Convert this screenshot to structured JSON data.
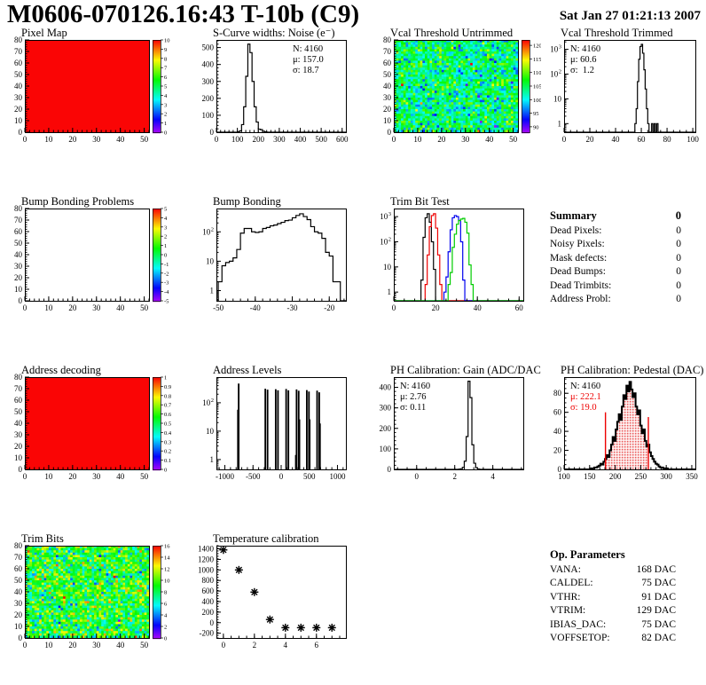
{
  "header": {
    "title": "M0606-070126.16:43 T-10b (C9)",
    "date": "Sat Jan 27 01:21:13 2007"
  },
  "summary": {
    "title": "Summary",
    "value": "0",
    "rows": [
      {
        "label": "Dead Pixels:",
        "value": "0"
      },
      {
        "label": "Noisy Pixels:",
        "value": "0"
      },
      {
        "label": "Mask defects:",
        "value": "0"
      },
      {
        "label": "Dead Bumps:",
        "value": "0"
      },
      {
        "label": "Dead Trimbits:",
        "value": "0"
      },
      {
        "label": "Address Probl:",
        "value": "0"
      }
    ]
  },
  "op_parameters": {
    "title": "Op. Parameters",
    "rows": [
      {
        "label": "VANA:",
        "value": "168 DAC"
      },
      {
        "label": "CALDEL:",
        "value": "75 DAC"
      },
      {
        "label": "VTHR:",
        "value": "91 DAC"
      },
      {
        "label": "VTRIM:",
        "value": "129 DAC"
      },
      {
        "label": "IBIAS_DAC:",
        "value": "75 DAC"
      },
      {
        "label": "VOFFSETOP:",
        "value": "82 DAC"
      }
    ]
  },
  "chart_data": [
    {
      "id": "pixel-map",
      "type": "heatmap",
      "title": "Pixel Map",
      "panel": {
        "row": 0,
        "col": 0
      },
      "x": {
        "min": 0,
        "max": 52,
        "ticks": [
          0,
          10,
          20,
          30,
          40,
          50
        ],
        "minor": 2
      },
      "y": {
        "min": 0,
        "max": 80,
        "ticks": [
          0,
          10,
          20,
          30,
          40,
          50,
          60,
          70,
          80
        ],
        "minor": 2
      },
      "heat": {
        "kind": "solid",
        "value": 1.0
      },
      "colorbar": {
        "min": 0,
        "max": 10,
        "ticks": [
          0,
          1,
          2,
          3,
          4,
          5,
          6,
          7,
          8,
          9,
          10
        ]
      }
    },
    {
      "id": "scurve-noise",
      "type": "histogram",
      "title": "S-Curve widths: Noise (e⁻)",
      "panel": {
        "row": 0,
        "col": 1
      },
      "x": {
        "min": 0,
        "max": 618,
        "ticks": [
          0,
          100,
          200,
          300,
          400,
          500,
          600
        ],
        "minor": 20
      },
      "y": {
        "min": 0,
        "max": 545,
        "ticks": [
          0,
          100,
          200,
          300,
          400,
          500
        ],
        "minor": 20
      },
      "bins": {
        "start": 100,
        "width": 10,
        "values": [
          2,
          8,
          45,
          150,
          330,
          520,
          470,
          300,
          150,
          60,
          18,
          15,
          6,
          2
        ]
      },
      "stats": {
        "side": "right",
        "lines": [
          {
            "text": "N: 4160",
            "color": "#000000"
          },
          {
            "text": "μ: 157.0",
            "color": "#000000"
          },
          {
            "text": "σ: 18.7",
            "color": "#000000"
          }
        ]
      }
    },
    {
      "id": "vcal-threshold-untrimmed",
      "type": "heatmap",
      "title": "Vcal Threshold Untrimmed",
      "panel": {
        "row": 0,
        "col": 2
      },
      "x": {
        "min": 0,
        "max": 52,
        "ticks": [
          0,
          10,
          20,
          30,
          40,
          50
        ],
        "minor": 2
      },
      "y": {
        "min": 0,
        "max": 80,
        "ticks": [
          0,
          10,
          20,
          30,
          40,
          50,
          60,
          70,
          80
        ],
        "minor": 2
      },
      "heat": {
        "kind": "noise",
        "base": 104,
        "dev": 8,
        "pOut": 0.02,
        "out": 11,
        "seed": 77
      },
      "colorbar": {
        "min": 88,
        "max": 122,
        "ticks": [
          90,
          95,
          100,
          105,
          110,
          115,
          120
        ]
      }
    },
    {
      "id": "vcal-threshold-trimmed",
      "type": "histogram",
      "title": "Vcal Threshold Trimmed",
      "panel": {
        "row": 0,
        "col": 3
      },
      "x": {
        "min": 0,
        "max": 102,
        "ticks": [
          0,
          20,
          40,
          60,
          80,
          100
        ],
        "minor": 5
      },
      "y": {
        "log": true,
        "min": 0.45,
        "max": 2400
      },
      "bins": {
        "start": 55,
        "width": 1,
        "values": [
          1,
          4,
          50,
          400,
          1300,
          1600,
          700,
          150,
          25,
          4,
          1,
          0,
          0,
          1,
          0,
          1,
          0,
          1
        ]
      },
      "stats": {
        "side": "left",
        "lines": [
          {
            "text": "N: 4160",
            "color": "#000000"
          },
          {
            "text": "μ: 60.6",
            "color": "#000000"
          },
          {
            "text": "σ:  1.2",
            "color": "#000000"
          }
        ]
      }
    },
    {
      "id": "bump-bonding-problems",
      "type": "heatmap",
      "title": "Bump Bonding Problems",
      "panel": {
        "row": 1,
        "col": 0
      },
      "x": {
        "min": 0,
        "max": 52,
        "ticks": [
          0,
          10,
          20,
          30,
          40,
          50
        ],
        "minor": 2
      },
      "y": {
        "min": 0,
        "max": 80,
        "ticks": [
          0,
          10,
          20,
          30,
          40,
          50,
          60,
          70,
          80
        ],
        "minor": 2
      },
      "heat": {
        "kind": "empty"
      },
      "colorbar": {
        "min": -5,
        "max": 5,
        "ticks": [
          -5,
          -4,
          -3,
          -2,
          -1,
          0,
          1,
          2,
          3,
          4,
          5
        ]
      }
    },
    {
      "id": "bump-bonding",
      "type": "histogram",
      "title": "Bump Bonding",
      "panel": {
        "row": 1,
        "col": 1
      },
      "x": {
        "min": -50.5,
        "max": -15.5,
        "ticks": [
          -50,
          -40,
          -30,
          -20
        ],
        "minor": 2
      },
      "y": {
        "log": true,
        "min": 0.45,
        "max": 620
      },
      "bins": {
        "start": -50,
        "width": 1,
        "values": [
          2,
          7,
          9,
          10,
          13,
          25,
          90,
          130,
          130,
          100,
          95,
          100,
          130,
          140,
          160,
          170,
          190,
          210,
          240,
          250,
          300,
          360,
          410,
          330,
          260,
          150,
          100,
          90,
          60,
          20,
          15,
          2,
          2
        ]
      }
    },
    {
      "id": "trim-bit-test",
      "type": "multihistogram",
      "title": "Trim Bit Test",
      "panel": {
        "row": 1,
        "col": 2
      },
      "x": {
        "min": 0,
        "max": 62,
        "ticks": [
          0,
          20,
          40,
          60
        ],
        "minor": 5
      },
      "y": {
        "log": true,
        "min": 0.45,
        "max": 2100
      },
      "series": [
        {
          "name": "trim-bit-0",
          "color": "#000000",
          "start": 13,
          "width": 1,
          "values": [
            3,
            150,
            900,
            1300,
            600,
            100,
            8
          ]
        },
        {
          "name": "trim-bit-1",
          "color": "#ee0000",
          "start": 15,
          "width": 1,
          "values": [
            2,
            30,
            400,
            1100,
            1300,
            350,
            30,
            2
          ]
        },
        {
          "name": "trim-bit-2",
          "color": "#0000ee",
          "start": 24,
          "width": 1,
          "values": [
            1,
            4,
            40,
            300,
            900,
            1100,
            1000,
            700,
            100,
            3
          ]
        },
        {
          "name": "trim-bit-3",
          "color": "#00cc00",
          "start": 26,
          "width": 1,
          "values": [
            2,
            6,
            60,
            200,
            500,
            700,
            800,
            850,
            600,
            220,
            12,
            2
          ]
        }
      ]
    },
    {
      "id": "address-decoding",
      "type": "heatmap",
      "title": "Address decoding",
      "panel": {
        "row": 2,
        "col": 0
      },
      "x": {
        "min": 0,
        "max": 52,
        "ticks": [
          0,
          10,
          20,
          30,
          40,
          50
        ],
        "minor": 2
      },
      "y": {
        "min": 0,
        "max": 80,
        "ticks": [
          0,
          10,
          20,
          30,
          40,
          50,
          60,
          70,
          80
        ],
        "minor": 2
      },
      "heat": {
        "kind": "solid",
        "value": 1.0
      },
      "colorbar": {
        "min": 0,
        "max": 1,
        "ticks": [
          0,
          0.1,
          0.2,
          0.3,
          0.4,
          0.5,
          0.6,
          0.7,
          0.8,
          0.9,
          1
        ]
      }
    },
    {
      "id": "address-levels",
      "type": "spikes",
      "title": "Address Levels",
      "panel": {
        "row": 2,
        "col": 1
      },
      "x": {
        "min": -1150,
        "max": 1150,
        "ticks": [
          -1000,
          -500,
          0,
          500,
          1000
        ],
        "minor": 100
      },
      "y": {
        "log": true,
        "min": 0.45,
        "max": 800
      },
      "binw": 13,
      "spikes": [
        [
          -774,
          55
        ],
        [
          -761,
          460
        ],
        [
          -288,
          300
        ],
        [
          -248,
          280
        ],
        [
          -103,
          290
        ],
        [
          -63,
          265
        ],
        [
          82,
          295
        ],
        [
          122,
          265
        ],
        [
          254,
          1.4
        ],
        [
          267,
          285
        ],
        [
          305,
          255
        ],
        [
          318,
          25
        ],
        [
          449,
          270
        ],
        [
          487,
          240
        ],
        [
          500,
          25
        ],
        [
          632,
          258
        ],
        [
          670,
          225
        ],
        [
          683,
          18
        ]
      ]
    },
    {
      "id": "ph-calibration-gain",
      "type": "histogram",
      "title": "PH Calibration: Gain (ADC/DAC)",
      "panel": {
        "row": 2,
        "col": 2
      },
      "x": {
        "min": -1.2,
        "max": 5.6,
        "ticks": [
          0,
          2,
          4
        ],
        "minor": 0.5
      },
      "y": {
        "min": 0,
        "max": 450,
        "ticks": [
          0,
          100,
          200,
          300,
          400
        ],
        "minor": 20
      },
      "bins": {
        "start": 2.2,
        "width": 0.1,
        "values": [
          1,
          3,
          10,
          40,
          160,
          430,
          350,
          120,
          30,
          8,
          2
        ]
      },
      "stats": {
        "side": "left",
        "lines": [
          {
            "text": "N: 4160",
            "color": "#000000"
          },
          {
            "text": "μ: 2.76",
            "color": "#000000"
          },
          {
            "text": "σ: 0.11",
            "color": "#000000"
          }
        ]
      }
    },
    {
      "id": "ph-calibration-pedestal",
      "type": "histogram",
      "title": "PH Calibration: Pedestal (DAC)",
      "panel": {
        "row": 2,
        "col": 3
      },
      "x": {
        "min": 100,
        "max": 357,
        "ticks": [
          100,
          150,
          200,
          250,
          300,
          350
        ],
        "minor": 10
      },
      "y": {
        "min": 0,
        "max": 97,
        "ticks": [
          0,
          20,
          40,
          60,
          80
        ],
        "minor": 5
      },
      "lineWidth": 2,
      "bins": {
        "start": 153,
        "width": 3,
        "values": [
          1,
          1,
          2,
          2,
          3,
          4,
          6,
          5,
          8,
          11,
          15,
          13,
          20,
          26,
          34,
          30,
          42,
          50,
          58,
          52,
          66,
          78,
          74,
          88,
          82,
          92,
          84,
          76,
          80,
          66,
          58,
          62,
          46,
          38,
          42,
          30,
          24,
          26,
          18,
          14,
          11,
          8,
          6,
          5,
          3,
          2,
          2,
          1,
          1,
          1
        ]
      },
      "hatch": {
        "from": 181,
        "to": 265,
        "color": "#e00000"
      },
      "vlines": [
        {
          "x": 181,
          "h": 60,
          "color": "#ee0000"
        },
        {
          "x": 265,
          "h": 55,
          "color": "#ee0000"
        }
      ],
      "stats": {
        "side": "left",
        "lines": [
          {
            "text": "N: 4160",
            "color": "#000000"
          },
          {
            "text": "μ: 222.1",
            "color": "#ee0000"
          },
          {
            "text": "σ: 19.0",
            "color": "#ee0000"
          }
        ]
      }
    },
    {
      "id": "trim-bits",
      "type": "heatmap",
      "title": "Trim Bits",
      "panel": {
        "row": 3,
        "col": 0
      },
      "x": {
        "min": 0,
        "max": 52,
        "ticks": [
          0,
          10,
          20,
          30,
          40,
          50
        ],
        "minor": 2
      },
      "y": {
        "min": 0,
        "max": 80,
        "ticks": [
          0,
          10,
          20,
          30,
          40,
          50,
          60,
          70,
          80
        ],
        "minor": 2
      },
      "heat": {
        "kind": "noise",
        "base": 9,
        "dev": 4.5,
        "pOut": 0.02,
        "out": 4,
        "seed": 1234
      },
      "colorbar": {
        "min": 0,
        "max": 16,
        "ticks": [
          0,
          2,
          4,
          6,
          8,
          10,
          12,
          14,
          16
        ]
      }
    },
    {
      "id": "temperature-calibration",
      "type": "scatter",
      "title": "Temperature calibration",
      "panel": {
        "row": 3,
        "col": 1
      },
      "x": {
        "min": -0.45,
        "max": 7.9,
        "ticks": [
          0,
          2,
          4,
          6
        ],
        "minor": 0.5
      },
      "y": {
        "min": -290,
        "max": 1460,
        "ticks": [
          -200,
          0,
          200,
          400,
          600,
          800,
          1000,
          1200,
          1400
        ],
        "minor": 50
      },
      "points": [
        [
          0,
          1380
        ],
        [
          1,
          1000
        ],
        [
          2,
          580
        ],
        [
          3,
          60
        ],
        [
          4,
          -95
        ],
        [
          5,
          -95
        ],
        [
          6,
          -95
        ],
        [
          7,
          -95
        ]
      ]
    }
  ]
}
